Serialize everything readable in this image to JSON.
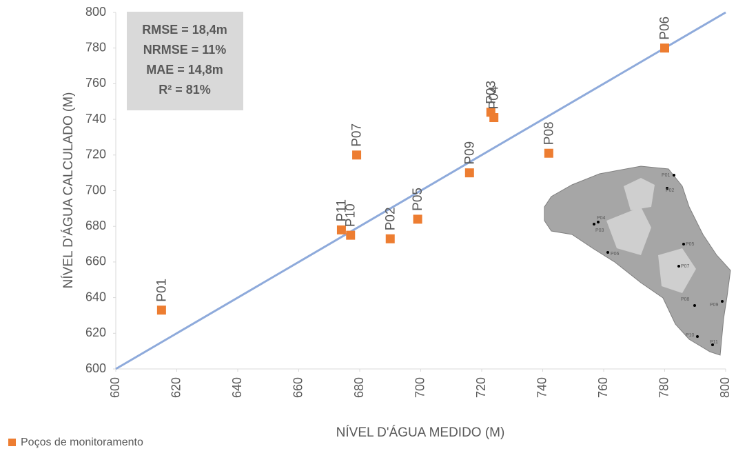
{
  "chart_data": {
    "type": "scatter",
    "xlabel": "NÍVEL D'ÁGUA MEDIDO (M)",
    "ylabel": "NÍVEL D'ÁGUA CALCULADO (M)",
    "xlim": [
      600,
      800
    ],
    "ylim": [
      600,
      800
    ],
    "xticks": [
      600,
      620,
      640,
      660,
      680,
      700,
      720,
      740,
      760,
      780,
      800
    ],
    "yticks": [
      600,
      620,
      640,
      660,
      680,
      700,
      720,
      740,
      760,
      780,
      800
    ],
    "series": [
      {
        "name": "Poços de monitoramento",
        "color": "#ed7d31",
        "labels": [
          "P01",
          "P11",
          "P10",
          "P07",
          "P02",
          "P05",
          "P09",
          "P03",
          "P04",
          "P08",
          "P06"
        ],
        "x": [
          615,
          674,
          677,
          679,
          690,
          699,
          716,
          723,
          724,
          742,
          780
        ],
        "values": [
          633,
          678,
          675,
          720,
          673,
          684,
          710,
          744,
          741,
          721,
          780
        ]
      }
    ],
    "reference_line": {
      "x": [
        600,
        800
      ],
      "y": [
        600,
        800
      ],
      "color": "#8eaadb"
    },
    "stats_box": [
      "RMSE = 18,4m",
      "NRMSE = 11%",
      "MAE = 14,8m",
      "R² = 81%"
    ],
    "inset_labels": [
      "P01",
      "P02",
      "P04",
      "P03",
      "P05",
      "P06",
      "P07",
      "P08",
      "P09",
      "P10",
      "P11"
    ]
  }
}
